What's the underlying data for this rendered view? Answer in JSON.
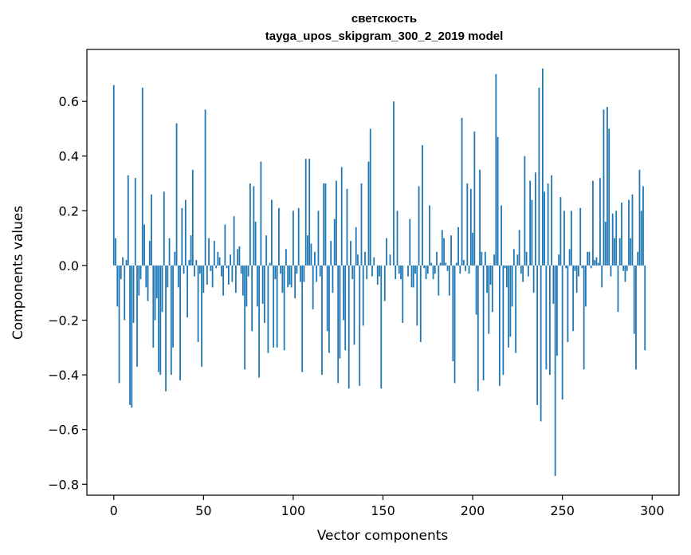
{
  "chart_data": {
    "type": "bar",
    "title_lines": [
      "светскость",
      "tayga_upos_skipgram_300_2_2019 model"
    ],
    "xlabel": "Vector components",
    "ylabel": "Components values",
    "xlim": [
      -15,
      315
    ],
    "ylim": [
      -0.84,
      0.79
    ],
    "x_ticks": [
      0,
      50,
      100,
      150,
      200,
      250,
      300
    ],
    "x_tick_labels": [
      "0",
      "50",
      "100",
      "150",
      "200",
      "250",
      "300"
    ],
    "y_ticks": [
      -0.8,
      -0.6,
      -0.4,
      -0.2,
      0.0,
      0.2,
      0.4,
      0.6
    ],
    "y_tick_labels": [
      "−0.8",
      "−0.6",
      "−0.4",
      "−0.2",
      "0.0",
      "0.2",
      "0.4",
      "0.6"
    ],
    "grid": false,
    "bar_color": "#1f77b4",
    "values": [
      0.66,
      0.1,
      -0.15,
      -0.43,
      -0.05,
      0.03,
      -0.2,
      0.02,
      0.33,
      -0.51,
      -0.52,
      -0.21,
      0.32,
      -0.37,
      -0.11,
      -0.05,
      0.65,
      0.15,
      -0.08,
      -0.13,
      0.09,
      0.26,
      -0.3,
      -0.2,
      -0.12,
      -0.39,
      -0.4,
      -0.17,
      0.27,
      -0.46,
      -0.08,
      0.1,
      -0.4,
      -0.3,
      0.05,
      0.52,
      -0.08,
      -0.42,
      0.21,
      -0.03,
      0.24,
      -0.19,
      0.02,
      0.11,
      0.35,
      -0.04,
      0.02,
      -0.28,
      -0.03,
      -0.37,
      -0.1,
      0.57,
      -0.07,
      0.1,
      -0.02,
      -0.08,
      0.09,
      -0.01,
      0.05,
      0.03,
      -0.04,
      -0.11,
      0.15,
      -0.01,
      -0.07,
      0.04,
      -0.06,
      0.18,
      -0.1,
      0.06,
      0.07,
      -0.03,
      -0.11,
      -0.38,
      -0.15,
      -0.04,
      0.3,
      -0.24,
      0.29,
      0.16,
      -0.15,
      -0.41,
      0.38,
      -0.14,
      -0.21,
      0.11,
      -0.32,
      0.01,
      0.24,
      -0.3,
      -0.05,
      -0.3,
      0.21,
      -0.03,
      -0.1,
      -0.31,
      0.06,
      -0.08,
      -0.07,
      -0.08,
      0.2,
      -0.12,
      -0.03,
      0.21,
      -0.06,
      -0.39,
      -0.06,
      0.39,
      0.11,
      0.39,
      0.08,
      -0.16,
      0.05,
      -0.06,
      0.2,
      -0.04,
      -0.4,
      0.3,
      0.3,
      -0.24,
      -0.32,
      0.09,
      -0.1,
      0.17,
      0.31,
      -0.43,
      -0.34,
      0.36,
      -0.2,
      -0.31,
      0.28,
      -0.45,
      0.09,
      -0.05,
      -0.29,
      0.14,
      0.04,
      -0.44,
      0.3,
      -0.22,
      0.05,
      -0.05,
      0.38,
      0.5,
      -0.04,
      0.03,
      0.0,
      -0.07,
      -0.04,
      -0.45,
      0.0,
      -0.13,
      0.1,
      0.0,
      0.04,
      0.0,
      0.6,
      -0.05,
      0.2,
      -0.03,
      -0.05,
      -0.21,
      0.0,
      0.0,
      -0.04,
      0.17,
      -0.08,
      -0.08,
      -0.03,
      -0.22,
      0.29,
      -0.28,
      0.44,
      -0.01,
      -0.05,
      -0.03,
      0.22,
      0.01,
      -0.05,
      -0.03,
      0.05,
      -0.11,
      0.01,
      0.13,
      0.1,
      0.01,
      -0.02,
      -0.11,
      0.11,
      -0.35,
      -0.43,
      0.01,
      0.14,
      -0.03,
      0.54,
      0.02,
      -0.02,
      0.3,
      -0.03,
      0.28,
      0.12,
      0.49,
      -0.18,
      -0.46,
      0.35,
      0.05,
      -0.42,
      0.05,
      -0.1,
      -0.25,
      -0.07,
      -0.17,
      0.04,
      0.7,
      0.47,
      -0.44,
      0.22,
      -0.4,
      -0.01,
      -0.08,
      -0.3,
      -0.26,
      -0.15,
      0.06,
      -0.32,
      0.04,
      0.13,
      -0.03,
      -0.06,
      0.4,
      0.05,
      -0.04,
      0.31,
      0.24,
      -0.1,
      0.34,
      -0.51,
      0.65,
      -0.57,
      0.72,
      0.27,
      -0.38,
      0.3,
      -0.4,
      0.33,
      -0.14,
      -0.77,
      -0.33,
      0.04,
      0.25,
      -0.49,
      0.2,
      -0.01,
      -0.28,
      0.06,
      0.2,
      -0.24,
      -0.02,
      -0.1,
      -0.04,
      0.21,
      -0.01,
      -0.38,
      -0.15,
      0.05,
      0.05,
      -0.01,
      0.31,
      0.02,
      0.03,
      0.01,
      0.32,
      -0.08,
      0.57,
      0.16,
      0.58,
      0.5,
      -0.04,
      0.19,
      0.1,
      0.2,
      -0.17,
      0.1,
      0.23,
      -0.02,
      -0.06,
      -0.02,
      0.24,
      0.1,
      0.26,
      -0.25,
      -0.38,
      0.05,
      0.35,
      0.2,
      0.29,
      -0.31,
      0.0,
      0.0,
      0.0,
      0.0
    ]
  }
}
